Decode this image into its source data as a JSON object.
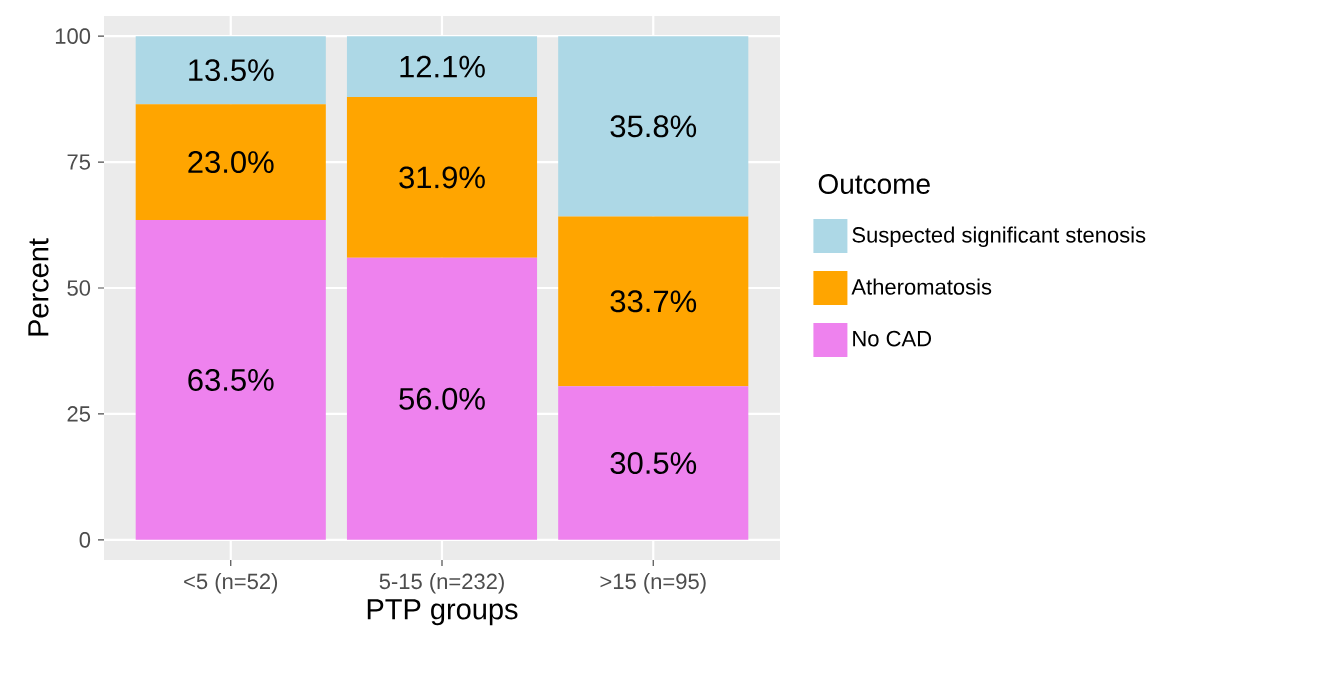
{
  "chart_data": {
    "type": "bar",
    "stacked": true,
    "xlabel": "PTP groups",
    "ylabel": "Percent",
    "legend_title": "Outcome",
    "categories": [
      "<5 (n=52)",
      "5-15 (n=232)",
      ">15 (n=95)"
    ],
    "series": [
      {
        "name": "No CAD",
        "color": "#ee82ee",
        "values": [
          63.5,
          56.0,
          30.5
        ],
        "value_labels": [
          "63.5%",
          "56.0%",
          "30.5%"
        ]
      },
      {
        "name": "Atheromatosis",
        "color": "#ffa500",
        "values": [
          23.0,
          31.9,
          33.7
        ],
        "value_labels": [
          "23.0%",
          "31.9%",
          "33.7%"
        ]
      },
      {
        "name": "Suspected significant stenosis",
        "color": "#add8e6",
        "values": [
          13.5,
          12.1,
          35.8
        ],
        "value_labels": [
          "13.5%",
          "12.1%",
          "35.8%"
        ]
      }
    ],
    "ylim": [
      0,
      100
    ],
    "yticks": [
      0,
      25,
      50,
      75,
      100
    ],
    "grid": true,
    "legend": "right"
  }
}
